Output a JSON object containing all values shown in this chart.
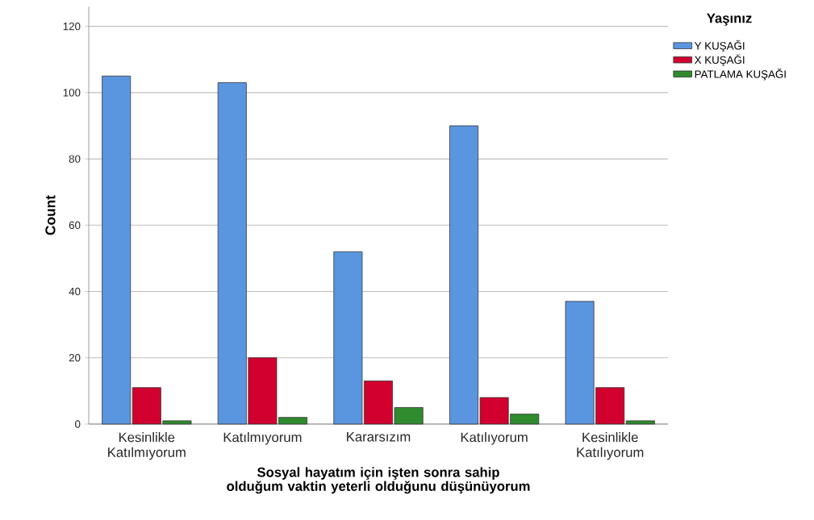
{
  "chart_data": {
    "type": "bar",
    "xlabel": "Sosyal hayatım için işten sonra sahip olduğum vaktin yeterli olduğunu düşünüyorum",
    "ylabel": "Count",
    "legend_title": "Yaşınız",
    "legend": "right",
    "grid": "y",
    "categories": [
      "Kesinlikle Katılmıyorum",
      "Katılmıyorum",
      "Kararsızım",
      "Katılıyorum",
      "Kesinlikle Katılıyorum"
    ],
    "series": [
      {
        "name": "Y KUŞAĞI",
        "color": "#5a96e0",
        "values": [
          105,
          103,
          52,
          90,
          37
        ]
      },
      {
        "name": "X KUŞAĞI",
        "color": "#d2002f",
        "values": [
          11,
          20,
          13,
          8,
          11
        ]
      },
      {
        "name": "PATLAMA KUŞAĞI",
        "color": "#2e8b2e",
        "values": [
          1,
          2,
          5,
          3,
          1
        ]
      }
    ],
    "ylim": [
      0,
      126
    ],
    "yticks": [
      0,
      20,
      40,
      60,
      80,
      100,
      120
    ]
  }
}
